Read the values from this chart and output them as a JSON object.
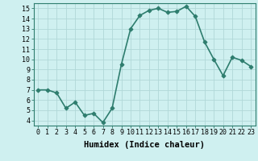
{
  "x": [
    0,
    1,
    2,
    3,
    4,
    5,
    6,
    7,
    8,
    9,
    10,
    11,
    12,
    13,
    14,
    15,
    16,
    17,
    18,
    19,
    20,
    21,
    22,
    23
  ],
  "y": [
    7.0,
    7.0,
    6.7,
    5.2,
    5.8,
    4.5,
    4.7,
    3.8,
    5.2,
    9.5,
    13.0,
    14.3,
    14.8,
    15.0,
    14.6,
    14.7,
    15.2,
    14.2,
    11.7,
    10.0,
    8.4,
    10.2,
    9.9,
    9.3
  ],
  "line_color": "#2e7d6e",
  "marker": "D",
  "marker_size": 2.5,
  "bg_color": "#cff0f0",
  "grid_color": "#b0d8d8",
  "xlabel": "Humidex (Indice chaleur)",
  "xlim": [
    -0.5,
    23.5
  ],
  "ylim": [
    3.5,
    15.5
  ],
  "yticks": [
    4,
    5,
    6,
    7,
    8,
    9,
    10,
    11,
    12,
    13,
    14,
    15
  ],
  "xticks": [
    0,
    1,
    2,
    3,
    4,
    5,
    6,
    7,
    8,
    9,
    10,
    11,
    12,
    13,
    14,
    15,
    16,
    17,
    18,
    19,
    20,
    21,
    22,
    23
  ],
  "label_fontsize": 7.5,
  "tick_fontsize": 6.0,
  "line_width": 1.2
}
